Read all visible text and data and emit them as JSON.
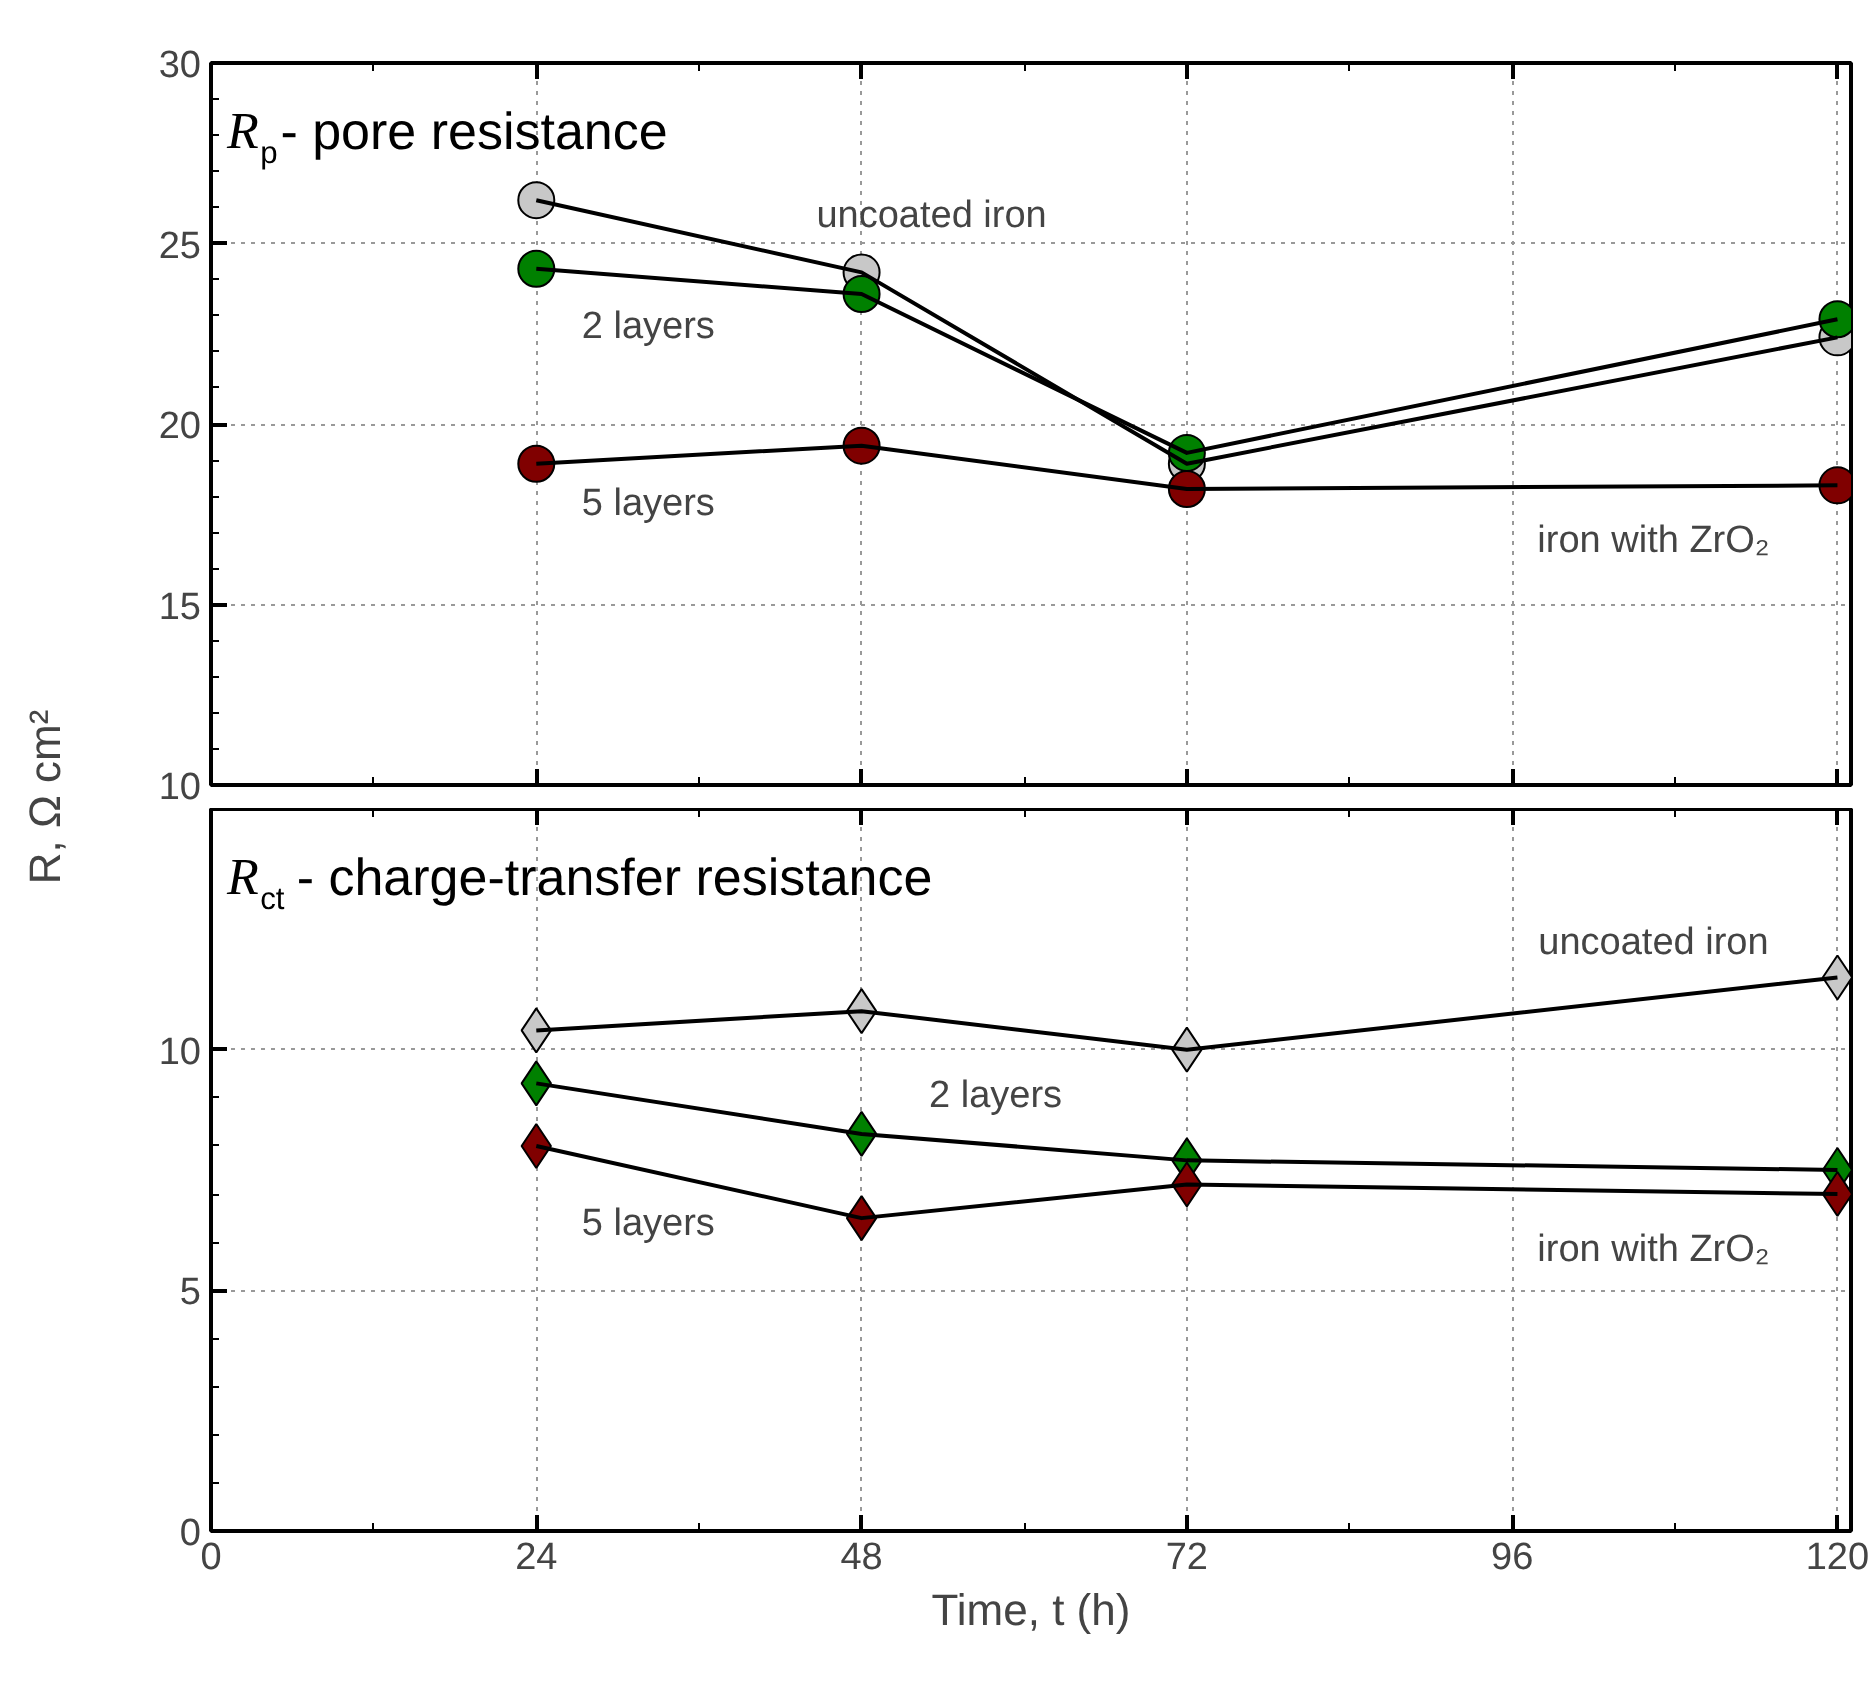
{
  "chart_data": [
    {
      "type": "line",
      "title": "R$_{p}$- pore resistance",
      "marker": "circle",
      "line_style": "solid",
      "grid": true,
      "tick_labels": "y",
      "x": [
        24,
        48,
        72,
        120
      ],
      "xlim": [
        0,
        121
      ],
      "xticks": [
        0,
        24,
        48,
        72,
        96,
        120
      ],
      "ylim": [
        10,
        30
      ],
      "yticks": [
        10,
        15,
        20,
        25,
        30
      ],
      "series": [
        {
          "name": "uncoated iron",
          "color": "#c8c8c8",
          "values": [
            26.2,
            24.2,
            18.9,
            22.4
          ]
        },
        {
          "name": "2 layers",
          "color": "#008000",
          "values": [
            24.3,
            23.6,
            19.2,
            22.9
          ]
        },
        {
          "name": "5 layers",
          "color": "#800000",
          "values": [
            18.9,
            19.4,
            18.2,
            18.3
          ]
        }
      ],
      "annotations": [
        "iron with ZrO₂"
      ]
    },
    {
      "type": "line",
      "title": "R$_{ct}$ - charge-transfer resistance",
      "xlabel": "Time, t (h)",
      "ylabel": "R, Ω cm²",
      "marker": "diamond",
      "line_style": "solid",
      "grid": true,
      "x": [
        24,
        48,
        72,
        120
      ],
      "xlim": [
        0,
        121
      ],
      "xticks": [
        0,
        24,
        48,
        72,
        96,
        120
      ],
      "ylim": [
        0,
        15
      ],
      "yticks": [
        0,
        5,
        10
      ],
      "series": [
        {
          "name": "uncoated iron",
          "color": "#c8c8c8",
          "values": [
            10.4,
            10.8,
            10.0,
            11.5
          ]
        },
        {
          "name": "2 layers",
          "color": "#008000",
          "values": [
            9.3,
            8.25,
            7.7,
            7.5
          ]
        },
        {
          "name": "5 layers",
          "color": "#800000",
          "values": [
            8.0,
            6.5,
            7.2,
            7.0
          ]
        }
      ],
      "annotations": [
        "iron with ZrO₂"
      ]
    }
  ]
}
